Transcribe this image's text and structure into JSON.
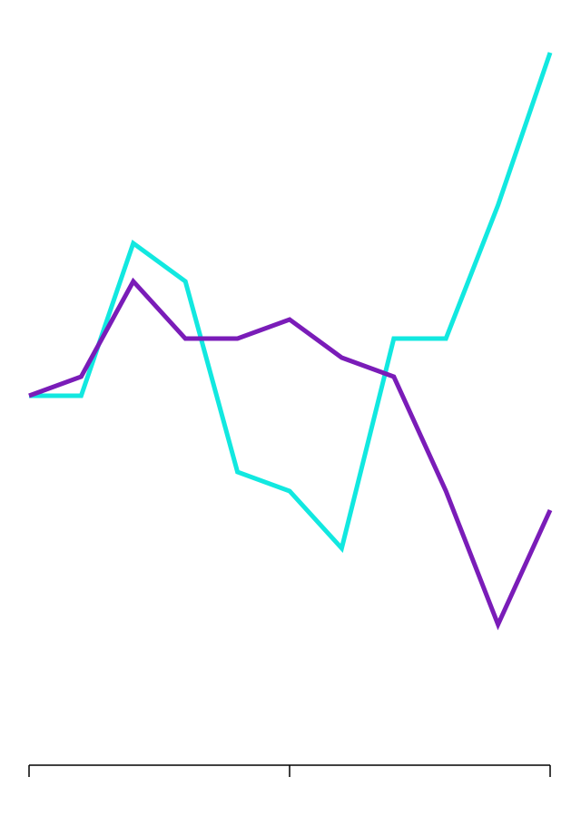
{
  "chart_data": {
    "type": "line",
    "x": [
      0,
      1,
      2,
      3,
      4,
      5,
      6,
      7,
      8,
      9,
      10
    ],
    "xlim": [
      0,
      10
    ],
    "xticks": [
      0,
      5,
      10
    ],
    "ylim": [
      -2,
      32
    ],
    "series": [
      {
        "color": "#12e8e0",
        "values": [
          12,
          12,
          20,
          18,
          8,
          7,
          4,
          15,
          15,
          22,
          30
        ]
      },
      {
        "color": "#7a1cb8",
        "values": [
          12,
          13,
          18,
          15,
          15,
          16,
          14,
          13,
          7,
          0,
          6
        ]
      }
    ]
  }
}
